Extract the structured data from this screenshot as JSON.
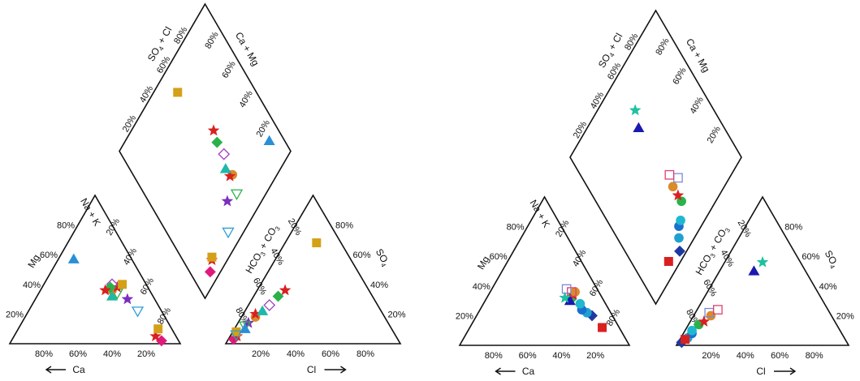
{
  "panels": [
    {
      "id": "left",
      "tick_labels": [
        "20%",
        "40%",
        "60%",
        "80%"
      ],
      "cation_axes": {
        "bottom": "Ca",
        "left": "Mg",
        "right": "Na + K"
      },
      "anion_axes": {
        "bottom": "Cl",
        "left": "HCO3 + CO3",
        "right": "SO4"
      },
      "diamond_axes": {
        "upper_left": "SO4 + Cl",
        "upper_right": "Ca + Mg"
      }
    },
    {
      "id": "right",
      "tick_labels": [
        "20%",
        "40%",
        "60%",
        "80%"
      ],
      "cation_axes": {
        "bottom": "Ca",
        "left": "Mg",
        "right": "Na + K"
      },
      "anion_axes": {
        "bottom": "Cl",
        "left": "HCO3 + CO3",
        "right": "SO4"
      },
      "diamond_axes": {
        "upper_left": "SO4 + Cl",
        "upper_right": "Ca + Mg"
      }
    }
  ],
  "chart_data": [
    {
      "type": "scatter",
      "subtype": "piper",
      "panel": "left",
      "units": "percent of meq/L",
      "points": [
        {
          "ca": 10,
          "mg": 2,
          "cl": 3,
          "so4": 3,
          "marker": "diamond",
          "color": "#e0197d"
        },
        {
          "ca": 12,
          "mg": 5,
          "cl": 4,
          "so4": 5,
          "marker": "star",
          "color": "#d92020"
        },
        {
          "ca": 8,
          "mg": 10,
          "cl": 2,
          "so4": 8,
          "marker": "square",
          "color": "#d4a017"
        },
        {
          "ca": 14,
          "mg": 22,
          "cl": 3,
          "so4": 6,
          "marker": "tri-down",
          "color": "#2a9fd6",
          "filled": false
        },
        {
          "ca": 16,
          "mg": 30,
          "cl": 6,
          "so4": 14,
          "marker": "star",
          "color": "#7a2fbf"
        },
        {
          "ca": 20,
          "mg": 34,
          "cl": 5,
          "so4": 12,
          "marker": "tri-down",
          "color": "#2ab24a",
          "filled": false
        },
        {
          "ca": 22,
          "mg": 36,
          "cl": 8,
          "so4": 18,
          "marker": "circle",
          "color": "#d98c2a"
        },
        {
          "ca": 18,
          "mg": 38,
          "cl": 7,
          "so4": 20,
          "marker": "star",
          "color": "#d92020"
        },
        {
          "ca": 24,
          "mg": 32,
          "cl": 10,
          "so4": 22,
          "marker": "triangle",
          "color": "#20b8a8"
        },
        {
          "ca": 20,
          "mg": 40,
          "cl": 12,
          "so4": 26,
          "marker": "diamond",
          "color": "#a040c0",
          "filled": false
        },
        {
          "ca": 22,
          "mg": 38,
          "cl": 14,
          "so4": 32,
          "marker": "diamond",
          "color": "#2ab24a"
        },
        {
          "ca": 26,
          "mg": 36,
          "cl": 16,
          "so4": 36,
          "marker": "star",
          "color": "#d92020"
        },
        {
          "ca": 34,
          "mg": 57,
          "cl": 6,
          "so4": 10,
          "marker": "triangle",
          "color": "#2a8fd6"
        },
        {
          "ca": 14,
          "mg": 40,
          "cl": 18,
          "so4": 68,
          "marker": "square",
          "color": "#d4a017"
        }
      ]
    },
    {
      "type": "scatter",
      "subtype": "piper",
      "panel": "right",
      "units": "percent of meq/L",
      "points": [
        {
          "ca": 12,
          "mg": 20,
          "cl": 2,
          "so4": 2,
          "marker": "diamond",
          "color": "#1e3aa0"
        },
        {
          "ca": 14,
          "mg": 22,
          "cl": 4,
          "so4": 5,
          "marker": "circle",
          "color": "#20a0d0"
        },
        {
          "ca": 16,
          "mg": 24,
          "cl": 5,
          "so4": 8,
          "marker": "circle",
          "color": "#1a6fd0"
        },
        {
          "ca": 15,
          "mg": 28,
          "cl": 4,
          "so4": 10,
          "marker": "circle",
          "color": "#20b8d0"
        },
        {
          "ca": 18,
          "mg": 32,
          "cl": 6,
          "so4": 14,
          "marker": "circle",
          "color": "#2ab24a"
        },
        {
          "ca": 16,
          "mg": 34,
          "cl": 8,
          "so4": 16,
          "marker": "star",
          "color": "#d92020"
        },
        {
          "ca": 14,
          "mg": 36,
          "cl": 10,
          "so4": 20,
          "marker": "circle",
          "color": "#d98c2a"
        },
        {
          "ca": 18,
          "mg": 38,
          "cl": 8,
          "so4": 22,
          "marker": "square",
          "color": "#7a8ad6",
          "filled": false
        },
        {
          "ca": 10,
          "mg": 12,
          "cl": 3,
          "so4": 4,
          "marker": "square",
          "color": "#d92020"
        },
        {
          "ca": 16,
          "mg": 36,
          "cl": 12,
          "so4": 24,
          "marker": "square",
          "color": "#e04070",
          "filled": false
        },
        {
          "ca": 20,
          "mg": 30,
          "cl": 20,
          "so4": 50,
          "marker": "triangle",
          "color": "#1a1ab0"
        },
        {
          "ca": 22,
          "mg": 32,
          "cl": 22,
          "so4": 56,
          "marker": "star",
          "color": "#20c0a0"
        }
      ]
    }
  ]
}
